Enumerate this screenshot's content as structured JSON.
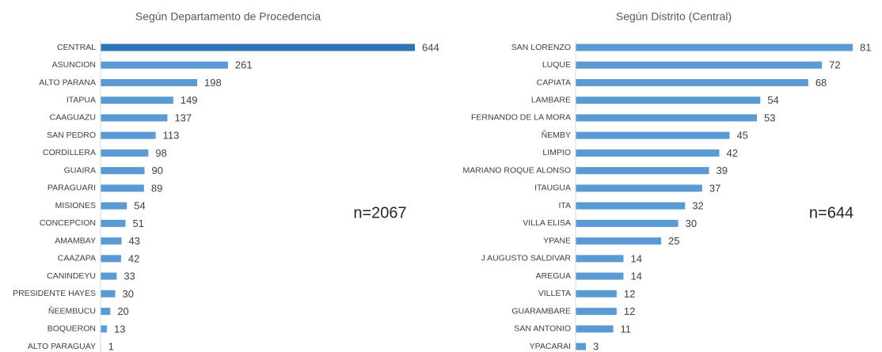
{
  "chart_data": [
    {
      "type": "bar",
      "orientation": "horizontal",
      "title": "Según Departamento de Procedencia",
      "annotation": "n=2067",
      "categories": [
        "CENTRAL",
        "ASUNCION",
        "ALTO PARANA",
        "ITAPUA",
        "CAAGUAZU",
        "SAN PEDRO",
        "CORDILLERA",
        "GUAIRA",
        "PARAGUARI",
        "MISIONES",
        "CONCEPCION",
        "AMAMBAY",
        "CAAZAPA",
        "CANINDEYU",
        "PRESIDENTE HAYES",
        "ÑEEMBUCU",
        "BOQUERON",
        "ALTO PARAGUAY"
      ],
      "values": [
        644,
        261,
        198,
        149,
        137,
        113,
        98,
        90,
        89,
        54,
        51,
        43,
        42,
        33,
        30,
        20,
        13,
        1
      ],
      "colors": [
        "#2e75b6",
        "#5b9bd5",
        "#5b9bd5",
        "#5b9bd5",
        "#5b9bd5",
        "#5b9bd5",
        "#5b9bd5",
        "#5b9bd5",
        "#5b9bd5",
        "#5b9bd5",
        "#5b9bd5",
        "#5b9bd5",
        "#5b9bd5",
        "#5b9bd5",
        "#5b9bd5",
        "#5b9bd5",
        "#5b9bd5",
        "#5b9bd5"
      ]
    },
    {
      "type": "bar",
      "orientation": "horizontal",
      "title": "Según Distrito (Central)",
      "annotation": "n=644",
      "categories": [
        "SAN LORENZO",
        "LUQUE",
        "CAPIATA",
        "LAMBARE",
        "FERNANDO DE LA MORA",
        "ÑEMBY",
        "LIMPIO",
        "MARIANO ROQUE ALONSO",
        "ITAUGUA",
        "ITA",
        "VILLA ELISA",
        "YPANE",
        "J AUGUSTO SALDIVAR",
        "AREGUA",
        "VILLETA",
        "GUARAMBARE",
        "SAN ANTONIO",
        "YPACARAI"
      ],
      "values": [
        81,
        72,
        68,
        54,
        53,
        45,
        42,
        39,
        37,
        32,
        30,
        25,
        14,
        14,
        12,
        12,
        11,
        3
      ],
      "color": "#5b9bd5"
    }
  ]
}
